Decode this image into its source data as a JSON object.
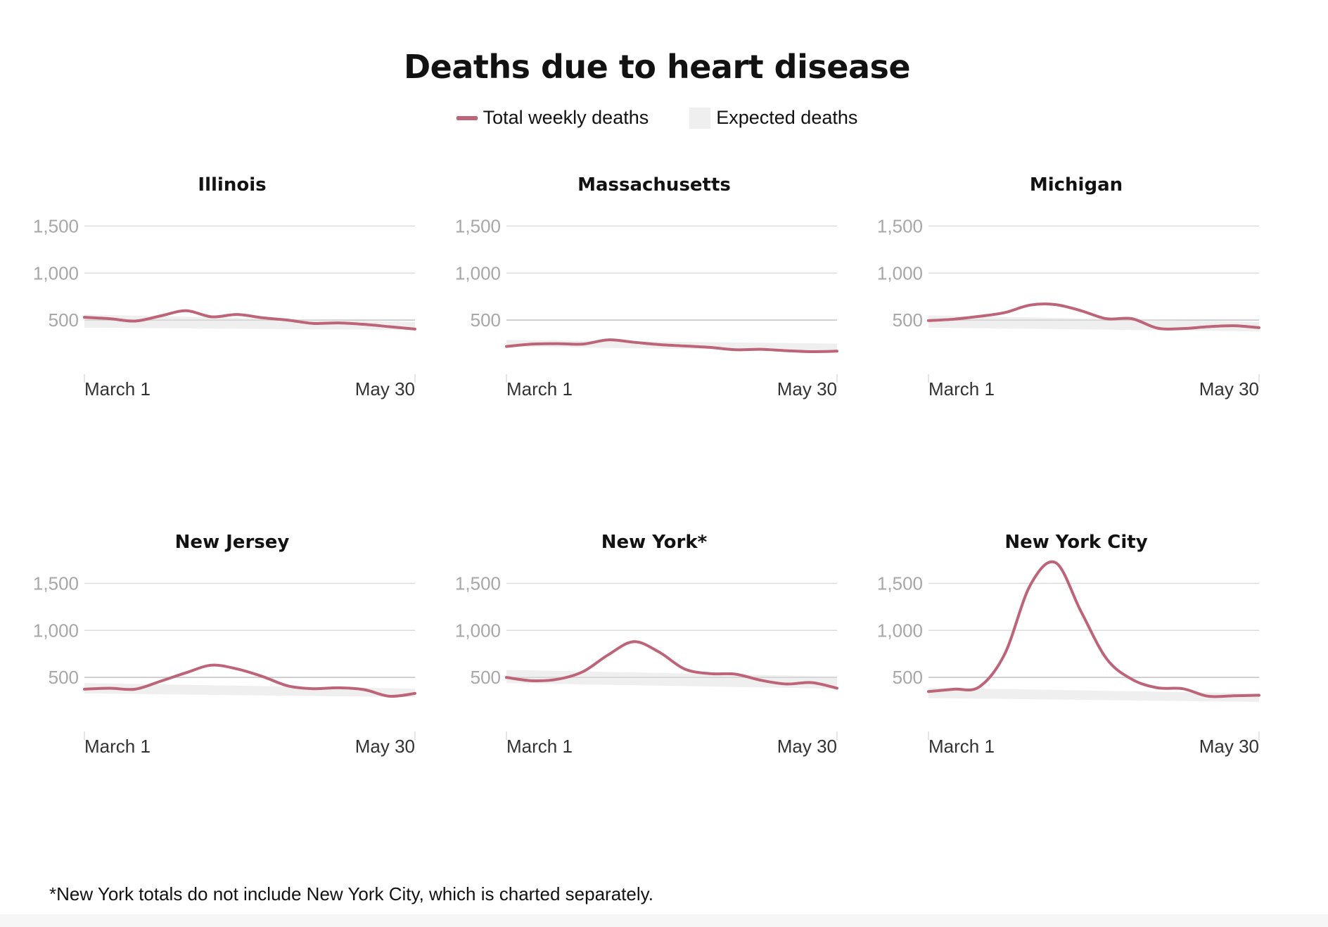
{
  "title": "Deaths due to heart disease",
  "legend": {
    "total_label": "Total weekly deaths",
    "expected_label": "Expected deaths"
  },
  "colors": {
    "line": "#bd6478",
    "band": "#efefef",
    "grid": "#dcdcdc",
    "baseline": "#c8c8c8",
    "tick_text": "#a7a7a7",
    "axis_text": "#333333"
  },
  "footnote": "*New York totals do not include New York City, which is charted separately.",
  "chart_data": [
    {
      "type": "line",
      "title": "Illinois",
      "ylim": [
        0,
        1750
      ],
      "y_ticks": [
        500,
        1000,
        1500
      ],
      "y_tick_labels": [
        "500",
        "1,000",
        "1,500"
      ],
      "x_labels": [
        "March 1",
        "May 30"
      ],
      "xlim": [
        0,
        13
      ],
      "series": [
        {
          "name": "Total weekly deaths",
          "x": [
            0,
            1,
            2,
            3,
            4,
            5,
            6,
            7,
            8,
            9,
            10,
            11,
            12,
            13
          ],
          "values": [
            530,
            515,
            490,
            545,
            600,
            535,
            560,
            525,
            500,
            465,
            470,
            455,
            430,
            405
          ]
        },
        {
          "name": "Expected deaths",
          "x": [
            0,
            13
          ],
          "low": [
            420,
            395
          ],
          "high": [
            560,
            480
          ]
        }
      ]
    },
    {
      "type": "line",
      "title": "Massachusetts",
      "ylim": [
        0,
        1750
      ],
      "y_ticks": [
        500,
        1000,
        1500
      ],
      "y_tick_labels": [
        "500",
        "1,000",
        "1,500"
      ],
      "x_labels": [
        "March 1",
        "May 30"
      ],
      "xlim": [
        0,
        13
      ],
      "series": [
        {
          "name": "Total weekly deaths",
          "x": [
            0,
            1,
            2,
            3,
            4,
            5,
            6,
            7,
            8,
            9,
            10,
            11,
            12,
            13
          ],
          "values": [
            220,
            245,
            250,
            245,
            290,
            265,
            240,
            225,
            210,
            185,
            190,
            175,
            165,
            170
          ]
        },
        {
          "name": "Expected deaths",
          "x": [
            0,
            13
          ],
          "low": [
            220,
            170
          ],
          "high": [
            290,
            250
          ]
        }
      ]
    },
    {
      "type": "line",
      "title": "Michigan",
      "ylim": [
        0,
        1750
      ],
      "y_ticks": [
        500,
        1000,
        1500
      ],
      "y_tick_labels": [
        "500",
        "1,000",
        "1,500"
      ],
      "x_labels": [
        "March 1",
        "May 30"
      ],
      "xlim": [
        0,
        13
      ],
      "series": [
        {
          "name": "Total weekly deaths",
          "x": [
            0,
            1,
            2,
            3,
            4,
            5,
            6,
            7,
            8,
            9,
            10,
            11,
            12,
            13
          ],
          "values": [
            495,
            510,
            540,
            580,
            660,
            665,
            600,
            515,
            515,
            415,
            410,
            430,
            440,
            420
          ]
        },
        {
          "name": "Expected deaths",
          "x": [
            0,
            13
          ],
          "low": [
            420,
            380
          ],
          "high": [
            550,
            480
          ]
        }
      ]
    },
    {
      "type": "line",
      "title": "New Jersey",
      "ylim": [
        0,
        1750
      ],
      "y_ticks": [
        500,
        1000,
        1500
      ],
      "y_tick_labels": [
        "500",
        "1,000",
        "1,500"
      ],
      "x_labels": [
        "March 1",
        "May 30"
      ],
      "xlim": [
        0,
        13
      ],
      "series": [
        {
          "name": "Total weekly deaths",
          "x": [
            0,
            1,
            2,
            3,
            4,
            5,
            6,
            7,
            8,
            9,
            10,
            11,
            12,
            13
          ],
          "values": [
            375,
            385,
            375,
            460,
            550,
            630,
            590,
            510,
            410,
            380,
            390,
            370,
            300,
            330
          ]
        },
        {
          "name": "Expected deaths",
          "x": [
            0,
            13
          ],
          "low": [
            330,
            290
          ],
          "high": [
            440,
            380
          ]
        }
      ]
    },
    {
      "type": "line",
      "title": "New York*",
      "ylim": [
        0,
        1750
      ],
      "y_ticks": [
        500,
        1000,
        1500
      ],
      "y_tick_labels": [
        "500",
        "1,000",
        "1,500"
      ],
      "x_labels": [
        "March 1",
        "May 30"
      ],
      "xlim": [
        0,
        13
      ],
      "series": [
        {
          "name": "Total weekly deaths",
          "x": [
            0,
            1,
            2,
            3,
            4,
            5,
            6,
            7,
            8,
            9,
            10,
            11,
            12,
            13
          ],
          "values": [
            500,
            465,
            480,
            560,
            740,
            880,
            770,
            590,
            540,
            535,
            470,
            430,
            445,
            385
          ]
        },
        {
          "name": "Expected deaths",
          "x": [
            0,
            13
          ],
          "low": [
            440,
            380
          ],
          "high": [
            580,
            510
          ]
        }
      ]
    },
    {
      "type": "line",
      "title": "New York City",
      "ylim": [
        0,
        1750
      ],
      "y_ticks": [
        500,
        1000,
        1500
      ],
      "y_tick_labels": [
        "500",
        "1,000",
        "1,500"
      ],
      "x_labels": [
        "March 1",
        "May 30"
      ],
      "xlim": [
        0,
        13
      ],
      "series": [
        {
          "name": "Total weekly deaths",
          "x": [
            0,
            1,
            2,
            3,
            4,
            5,
            6,
            7,
            8,
            9,
            10,
            11,
            12,
            13
          ],
          "values": [
            350,
            375,
            400,
            750,
            1480,
            1720,
            1200,
            700,
            480,
            390,
            380,
            300,
            305,
            310
          ]
        },
        {
          "name": "Expected deaths",
          "x": [
            0,
            13
          ],
          "low": [
            280,
            240
          ],
          "high": [
            390,
            330
          ]
        }
      ]
    }
  ]
}
